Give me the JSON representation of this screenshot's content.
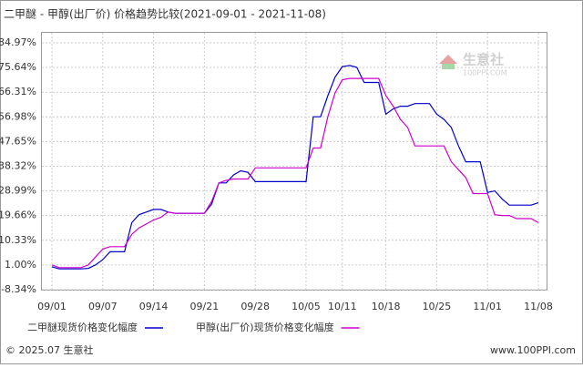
{
  "chart_data": {
    "type": "line",
    "title": "二甲醚 - 甲醇(出厂价) 价格趋势比较(2021-09-01 - 2021-11-08)",
    "categories": [
      "09/01",
      null,
      null,
      null,
      null,
      null,
      null,
      "09/07",
      null,
      null,
      null,
      null,
      null,
      null,
      "09/14",
      null,
      null,
      null,
      null,
      null,
      null,
      "09/21",
      null,
      null,
      null,
      null,
      null,
      null,
      "09/28",
      null,
      null,
      null,
      null,
      null,
      null,
      "10/05",
      null,
      null,
      null,
      null,
      "10/11",
      null,
      null,
      null,
      null,
      null,
      "10/18",
      null,
      null,
      null,
      null,
      null,
      null,
      "10/25",
      null,
      null,
      null,
      null,
      null,
      null,
      "11/01",
      null,
      null,
      null,
      null,
      null,
      null,
      "11/08"
    ],
    "series": [
      {
        "name": "二甲醚现货价格变化幅度",
        "color": "#0000cc",
        "values": [
          0.3,
          -0.5,
          -0.5,
          -0.5,
          -0.5,
          -0.3,
          1,
          3,
          6,
          6,
          6,
          17,
          20,
          21,
          22,
          22,
          21,
          20.5,
          20.5,
          20.5,
          20.5,
          20.5,
          24,
          32,
          32,
          35,
          36.6,
          36,
          32.5,
          32.5,
          32.5,
          32.5,
          32.5,
          32.5,
          32.5,
          32.5,
          57,
          57,
          65,
          72,
          76,
          76.4,
          75.7,
          70,
          70,
          70,
          58,
          60,
          61,
          61,
          62,
          62,
          62,
          58,
          56,
          53,
          46,
          40,
          40,
          40,
          28.4,
          29,
          26,
          23.6,
          23.6,
          23.6,
          23.6,
          24.5
        ]
      },
      {
        "name": "甲醇(出厂价)现货价格变化幅度",
        "color": "#cc00cc",
        "values": [
          1,
          0,
          0,
          0,
          0,
          1,
          4,
          7,
          7.9,
          7.9,
          7.9,
          12.6,
          15,
          16.5,
          18,
          19,
          21,
          20.5,
          20.5,
          20.5,
          20.5,
          20.5,
          25,
          32,
          33,
          33.5,
          33.5,
          33.5,
          37.7,
          37.7,
          37.7,
          37.7,
          37.7,
          37.7,
          37.7,
          37.7,
          45.2,
          45.2,
          57,
          66,
          71,
          71.5,
          71.5,
          71.5,
          71.5,
          71.5,
          65,
          61,
          56,
          53,
          46,
          46,
          46,
          46,
          46,
          40,
          37,
          34,
          28,
          28,
          28,
          20,
          19.7,
          19.7,
          18.5,
          18.5,
          18.5,
          17
        ]
      }
    ],
    "ylim": [
      -8.34,
      84.97
    ],
    "yticks": [
      {
        "value": -8.34,
        "label": "-8.34%"
      },
      {
        "value": 1.0,
        "label": "1.00%"
      },
      {
        "value": 10.33,
        "label": "10.33%"
      },
      {
        "value": 19.66,
        "label": "19.66%"
      },
      {
        "value": 28.99,
        "label": "28.99%"
      },
      {
        "value": 38.32,
        "label": "38.32%"
      },
      {
        "value": 47.65,
        "label": "47.65%"
      },
      {
        "value": 56.98,
        "label": "56.98%"
      },
      {
        "value": 66.31,
        "label": "66.31%"
      },
      {
        "value": 75.64,
        "label": "75.64%"
      },
      {
        "value": 84.97,
        "label": "84.97%"
      }
    ],
    "grid": true,
    "watermark": {
      "text": "生意社",
      "sub": "100PPI.COM"
    },
    "footer": {
      "left": "© 2025.07 生意社",
      "right": "www.100PPI.com"
    }
  }
}
